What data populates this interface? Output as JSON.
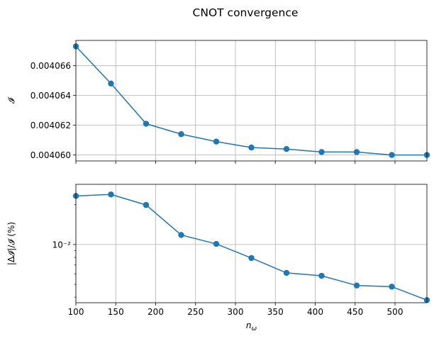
{
  "figure": {
    "title": "CNOT convergence"
  },
  "chart_data": [
    {
      "type": "line",
      "title": "CNOT convergence",
      "xlabel": "",
      "ylabel": "𝓘",
      "xlim": [
        100,
        540
      ],
      "ylim": [
        0.0040596,
        0.0040677
      ],
      "grid": true,
      "xticks": [
        100,
        150,
        200,
        250,
        300,
        350,
        400,
        450,
        500
      ],
      "xtick_labels": [
        "",
        "",
        "",
        "",
        "",
        "",
        "",
        "",
        ""
      ],
      "yticks": [
        0.004066,
        0.004064,
        0.004062,
        0.00406
      ],
      "ytick_labels": [
        "0.004066",
        "0.004064",
        "0.004062",
        "0.004060"
      ],
      "x": [
        100,
        144,
        188,
        232,
        276,
        320,
        364,
        408,
        452,
        496,
        540
      ],
      "series": [
        {
          "values": [
            0.0040673,
            0.0040648,
            0.0040621,
            0.0040614,
            0.0040609,
            0.0040605,
            0.0040604,
            0.0040602,
            0.0040602,
            0.00406,
            0.00406
          ]
        }
      ]
    },
    {
      "type": "line",
      "title": "",
      "xlabel": "n_ω",
      "ylabel": "|Δ𝓘|/𝓘 (%)",
      "xlim": [
        100,
        540
      ],
      "yscale": "log",
      "ylim": [
        0.00363,
        0.0285
      ],
      "grid": true,
      "xticks": [
        100,
        150,
        200,
        250,
        300,
        350,
        400,
        450,
        500
      ],
      "xtick_labels": [
        "100",
        "150",
        "200",
        "250",
        "300",
        "350",
        "400",
        "450",
        "500"
      ],
      "yticks": [
        0.01
      ],
      "ytick_labels": [
        "10⁻²"
      ],
      "x": [
        100,
        144,
        188,
        232,
        276,
        320,
        364,
        408,
        452,
        496,
        540
      ],
      "series": [
        {
          "values": [
            0.0233,
            0.0239,
            0.0199,
            0.0118,
            0.0101,
            0.0079,
            0.0061,
            0.0058,
            0.0049,
            0.0048,
            0.0038
          ]
        }
      ]
    }
  ]
}
